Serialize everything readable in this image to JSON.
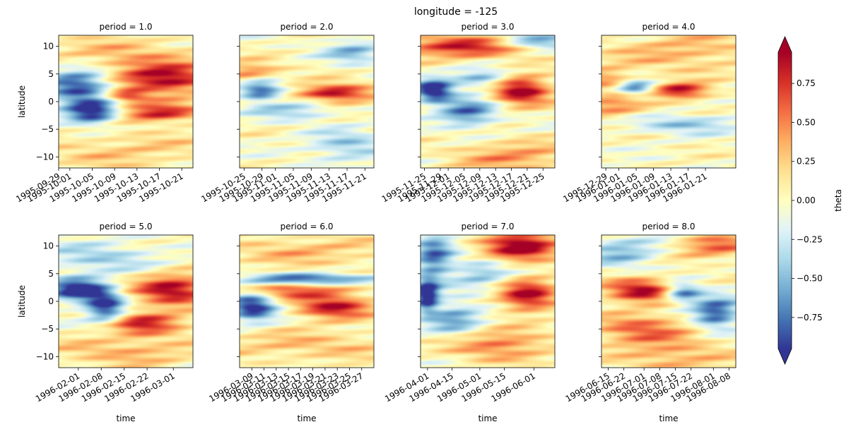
{
  "figure": {
    "suptitle": "longitude = -125",
    "colorbar_label": "theta",
    "colormap": "RdYlBu_r",
    "colormap_stops": [
      "#313695",
      "#4575b4",
      "#74add1",
      "#abd9e9",
      "#e0f3f8",
      "#ffffbf",
      "#fee090",
      "#fdae61",
      "#f46d43",
      "#d73027",
      "#a50026"
    ]
  },
  "chart_data": {
    "type": "heatmap",
    "variable": "theta",
    "colorbar": {
      "vmin": -0.95,
      "vmax": 0.95,
      "extend": "both",
      "ticks": [
        -0.75,
        -0.5,
        -0.25,
        0.0,
        0.25,
        0.5,
        0.75
      ],
      "tick_labels": [
        "-0.75",
        "-0.50",
        "-0.25",
        "0.00",
        "0.25",
        "0.50",
        "0.75"
      ],
      "label": "theta"
    },
    "y_axis": {
      "label": "latitude",
      "range": [
        -12,
        12
      ],
      "ticks": [
        -10,
        -5,
        0,
        5,
        10
      ]
    },
    "x_axis": {
      "label": "time"
    },
    "panels": [
      {
        "title": "period = 1.0",
        "period": 1.0,
        "x_range": [
          "1995-09-29",
          "1995-10-23"
        ],
        "x_ticks": [
          "1995-09-29",
          "1995-10-01",
          "1995-10-05",
          "1995-10-09",
          "1995-10-13",
          "1995-10-17",
          "1995-10-21"
        ],
        "features": [
          {
            "lat": 3,
            "t": 0.15,
            "amp": -0.95,
            "slat": 2.2,
            "st": 0.18
          },
          {
            "lat": -2,
            "t": 0.25,
            "amp": -1.1,
            "slat": 1.5,
            "st": 0.14
          },
          {
            "lat": 4,
            "t": 0.8,
            "amp": 0.95,
            "slat": 1.8,
            "st": 0.25
          },
          {
            "lat": -2,
            "t": 0.75,
            "amp": 0.85,
            "slat": 1.2,
            "st": 0.22
          },
          {
            "lat": 1,
            "t": 0.5,
            "amp": 0.7,
            "slat": 0.8,
            "st": 0.12
          },
          {
            "lat": 8,
            "t": 0.5,
            "amp": 0.35,
            "slat": 2.5,
            "st": 0.4
          },
          {
            "lat": -9,
            "t": 0.5,
            "amp": 0.25,
            "slat": 2.5,
            "st": 0.5
          }
        ]
      },
      {
        "title": "period = 2.0",
        "period": 2.0,
        "x_range": [
          "1995-10-24",
          "1995-11-23"
        ],
        "x_ticks": [
          "1995-10-25",
          "1995-10-29",
          "1995-11-01",
          "1995-11-05",
          "1995-11-09",
          "1995-11-13",
          "1995-11-17",
          "1995-11-21"
        ],
        "features": [
          {
            "lat": 2,
            "t": 0.15,
            "amp": -1.0,
            "slat": 1.8,
            "st": 0.12
          },
          {
            "lat": 1.5,
            "t": 0.7,
            "amp": 1.0,
            "slat": 1.2,
            "st": 0.2
          },
          {
            "lat": 5,
            "t": 0.1,
            "amp": 0.7,
            "slat": 1.4,
            "st": 0.15
          },
          {
            "lat": -1,
            "t": 0.4,
            "amp": -0.55,
            "slat": 1.5,
            "st": 0.2
          },
          {
            "lat": 9,
            "t": 0.85,
            "amp": -0.5,
            "slat": 1.5,
            "st": 0.15
          },
          {
            "lat": -8,
            "t": 0.8,
            "amp": -0.45,
            "slat": 2.0,
            "st": 0.2
          },
          {
            "lat": 0,
            "t": 0.2,
            "amp": 0.45,
            "slat": 1.0,
            "st": 0.2
          }
        ]
      },
      {
        "title": "period = 3.0",
        "period": 3.0,
        "x_range": [
          "1995-11-24",
          "1995-12-28"
        ],
        "x_ticks": [
          "1995-11-25",
          "1995-11-29",
          "1995-12-01",
          "1995-12-05",
          "1995-12-09",
          "1995-12-13",
          "1995-12-17",
          "1995-12-21",
          "1995-12-25"
        ],
        "features": [
          {
            "lat": 2,
            "t": 0.1,
            "amp": -1.1,
            "slat": 1.5,
            "st": 0.1
          },
          {
            "lat": 2,
            "t": 0.75,
            "amp": 1.05,
            "slat": 1.8,
            "st": 0.15
          },
          {
            "lat": 10,
            "t": 0.3,
            "amp": 0.8,
            "slat": 1.5,
            "st": 0.35
          },
          {
            "lat": 11,
            "t": 0.85,
            "amp": -0.65,
            "slat": 1.0,
            "st": 0.2
          },
          {
            "lat": -2,
            "t": 0.35,
            "amp": -0.75,
            "slat": 1.8,
            "st": 0.15
          },
          {
            "lat": 4,
            "t": 0.45,
            "amp": -0.55,
            "slat": 1.2,
            "st": 0.15
          },
          {
            "lat": -10,
            "t": 0.7,
            "amp": 0.45,
            "slat": 2.0,
            "st": 0.3
          }
        ]
      },
      {
        "title": "period = 4.0",
        "period": 4.0,
        "x_range": [
          "1995-12-28",
          "1996-01-28"
        ],
        "x_ticks": [
          "1995-12-29",
          "1996-01-01",
          "1996-01-05",
          "1996-01-09",
          "1996-01-13",
          "1996-01-17",
          "1996-01-21"
        ],
        "features": [
          {
            "lat": 2.5,
            "t": 0.25,
            "amp": -0.85,
            "slat": 1.0,
            "st": 0.1
          },
          {
            "lat": 2,
            "t": 0.6,
            "amp": 0.95,
            "slat": 1.0,
            "st": 0.15
          },
          {
            "lat": -1,
            "t": 0.1,
            "amp": 0.5,
            "slat": 1.5,
            "st": 0.2
          },
          {
            "lat": -4,
            "t": 0.6,
            "amp": -0.45,
            "slat": 1.2,
            "st": 0.3
          },
          {
            "lat": 9,
            "t": 0.6,
            "amp": 0.35,
            "slat": 2.5,
            "st": 0.4
          },
          {
            "lat": 4,
            "t": 0.05,
            "amp": 0.45,
            "slat": 1.5,
            "st": 0.15
          }
        ]
      },
      {
        "title": "period = 5.0",
        "period": 5.0,
        "x_range": [
          "1996-01-26",
          "1996-03-07"
        ],
        "x_ticks": [
          "1996-02-01",
          "1996-02-08",
          "1996-02-15",
          "1996-02-22",
          "1996-03-01"
        ],
        "features": [
          {
            "lat": 2,
            "t": 0.15,
            "amp": -1.1,
            "slat": 1.5,
            "st": 0.15
          },
          {
            "lat": -1,
            "t": 0.35,
            "amp": -0.95,
            "slat": 2.0,
            "st": 0.1
          },
          {
            "lat": 2,
            "t": 0.85,
            "amp": 0.95,
            "slat": 2.0,
            "st": 0.2
          },
          {
            "lat": -4,
            "t": 0.65,
            "amp": 0.75,
            "slat": 1.5,
            "st": 0.2
          },
          {
            "lat": 8,
            "t": 0.3,
            "amp": -0.4,
            "slat": 2.0,
            "st": 0.3
          },
          {
            "lat": -9,
            "t": 0.5,
            "amp": 0.35,
            "slat": 2.0,
            "st": 0.4
          }
        ]
      },
      {
        "title": "period = 6.0",
        "period": 6.0,
        "x_range": [
          "1996-03-07",
          "1996-03-29"
        ],
        "x_ticks": [
          "1996-03-09",
          "1996-03-11",
          "1996-03-13",
          "1996-03-15",
          "1996-03-17",
          "1996-03-19",
          "1996-03-21",
          "1996-03-23",
          "1996-03-25",
          "1996-03-27"
        ],
        "features": [
          {
            "lat": -1,
            "t": 0.1,
            "amp": -1.05,
            "slat": 1.8,
            "st": 0.12
          },
          {
            "lat": -1,
            "t": 0.7,
            "amp": 0.9,
            "slat": 1.5,
            "st": 0.2
          },
          {
            "lat": 4,
            "t": 0.55,
            "amp": -0.85,
            "slat": 0.7,
            "st": 0.4
          },
          {
            "lat": 2,
            "t": 0.4,
            "amp": 0.6,
            "slat": 1.0,
            "st": 0.3
          },
          {
            "lat": 9,
            "t": 0.5,
            "amp": 0.3,
            "slat": 2.0,
            "st": 0.5
          },
          {
            "lat": -8,
            "t": 0.5,
            "amp": 0.3,
            "slat": 2.0,
            "st": 0.5
          }
        ]
      },
      {
        "title": "period = 7.0",
        "period": 7.0,
        "x_range": [
          "1996-03-28",
          "1996-06-13"
        ],
        "x_ticks": [
          "1996-04-01",
          "1996-04-15",
          "1996-05-01",
          "1996-05-15",
          "1996-06-01"
        ],
        "features": [
          {
            "lat": 1,
            "t": 0.05,
            "amp": -1.1,
            "slat": 2.0,
            "st": 0.06
          },
          {
            "lat": 8,
            "t": 0.1,
            "amp": -0.75,
            "slat": 3.0,
            "st": 0.1
          },
          {
            "lat": 10,
            "t": 0.75,
            "amp": 1.0,
            "slat": 2.0,
            "st": 0.2
          },
          {
            "lat": 1,
            "t": 0.8,
            "amp": 0.95,
            "slat": 2.0,
            "st": 0.15
          },
          {
            "lat": -3,
            "t": 0.25,
            "amp": -0.6,
            "slat": 2.0,
            "st": 0.15
          },
          {
            "lat": -8,
            "t": 0.6,
            "amp": 0.55,
            "slat": 2.0,
            "st": 0.25
          },
          {
            "lat": 5,
            "t": 0.45,
            "amp": -0.45,
            "slat": 2.0,
            "st": 0.15
          }
        ]
      },
      {
        "title": "period = 8.0",
        "period": 8.0,
        "x_range": [
          "1996-06-12",
          "1996-08-11"
        ],
        "x_ticks": [
          "1996-06-15",
          "1996-06-22",
          "1996-07-01",
          "1996-07-08",
          "1996-07-15",
          "1996-07-22",
          "1996-08-01",
          "1996-08-08"
        ],
        "features": [
          {
            "lat": 2,
            "t": 0.3,
            "amp": 0.95,
            "slat": 1.5,
            "st": 0.2
          },
          {
            "lat": 1.5,
            "t": 0.6,
            "amp": -0.95,
            "slat": 1.2,
            "st": 0.1
          },
          {
            "lat": -2,
            "t": 0.85,
            "amp": -0.9,
            "slat": 2.0,
            "st": 0.12
          },
          {
            "lat": 9,
            "t": 0.15,
            "amp": -0.5,
            "slat": 2.0,
            "st": 0.2
          },
          {
            "lat": -5,
            "t": 0.3,
            "amp": 0.6,
            "slat": 2.0,
            "st": 0.25
          },
          {
            "lat": 10,
            "t": 0.85,
            "amp": 0.6,
            "slat": 1.5,
            "st": 0.2
          },
          {
            "lat": -10,
            "t": 0.55,
            "amp": 0.4,
            "slat": 2.0,
            "st": 0.3
          }
        ]
      }
    ]
  }
}
